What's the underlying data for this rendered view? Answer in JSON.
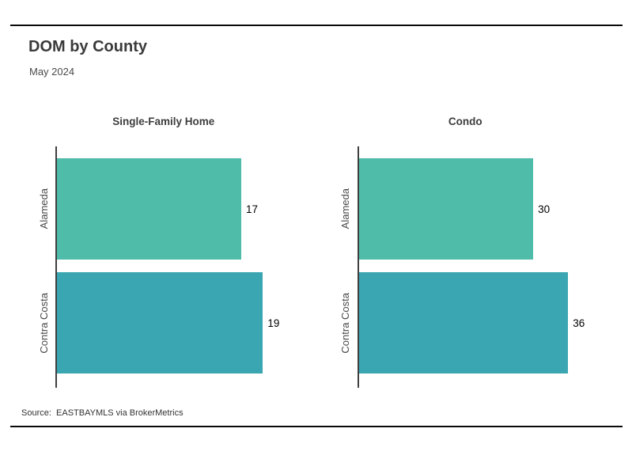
{
  "page": {
    "title": "DOM by County",
    "subtitle": "May 2024",
    "source_note": "Source:  EASTBAYMLS via BrokerMetrics"
  },
  "colors": {
    "bar_alameda": "#4fbca9",
    "bar_contra_costa": "#3aa6b2",
    "axis_line": "#3f3f3f",
    "rule": "#0a0a0a",
    "title_text": "#3a3a3a",
    "value_text": "#000000"
  },
  "chart_data": [
    {
      "type": "bar",
      "orientation": "horizontal",
      "title": "Single-Family Home",
      "categories": [
        "Alameda",
        "Contra Costa"
      ],
      "values": [
        17,
        19
      ],
      "bar_colors": [
        "#4fbca9",
        "#3aa6b2"
      ],
      "xlim": [
        0,
        22
      ],
      "value_labels": true,
      "grid": false,
      "legend": false
    },
    {
      "type": "bar",
      "orientation": "horizontal",
      "title": "Condo",
      "categories": [
        "Alameda",
        "Contra Costa"
      ],
      "values": [
        30,
        36
      ],
      "bar_colors": [
        "#4fbca9",
        "#3aa6b2"
      ],
      "xlim": [
        0,
        41
      ],
      "value_labels": true,
      "grid": false,
      "legend": false
    }
  ]
}
